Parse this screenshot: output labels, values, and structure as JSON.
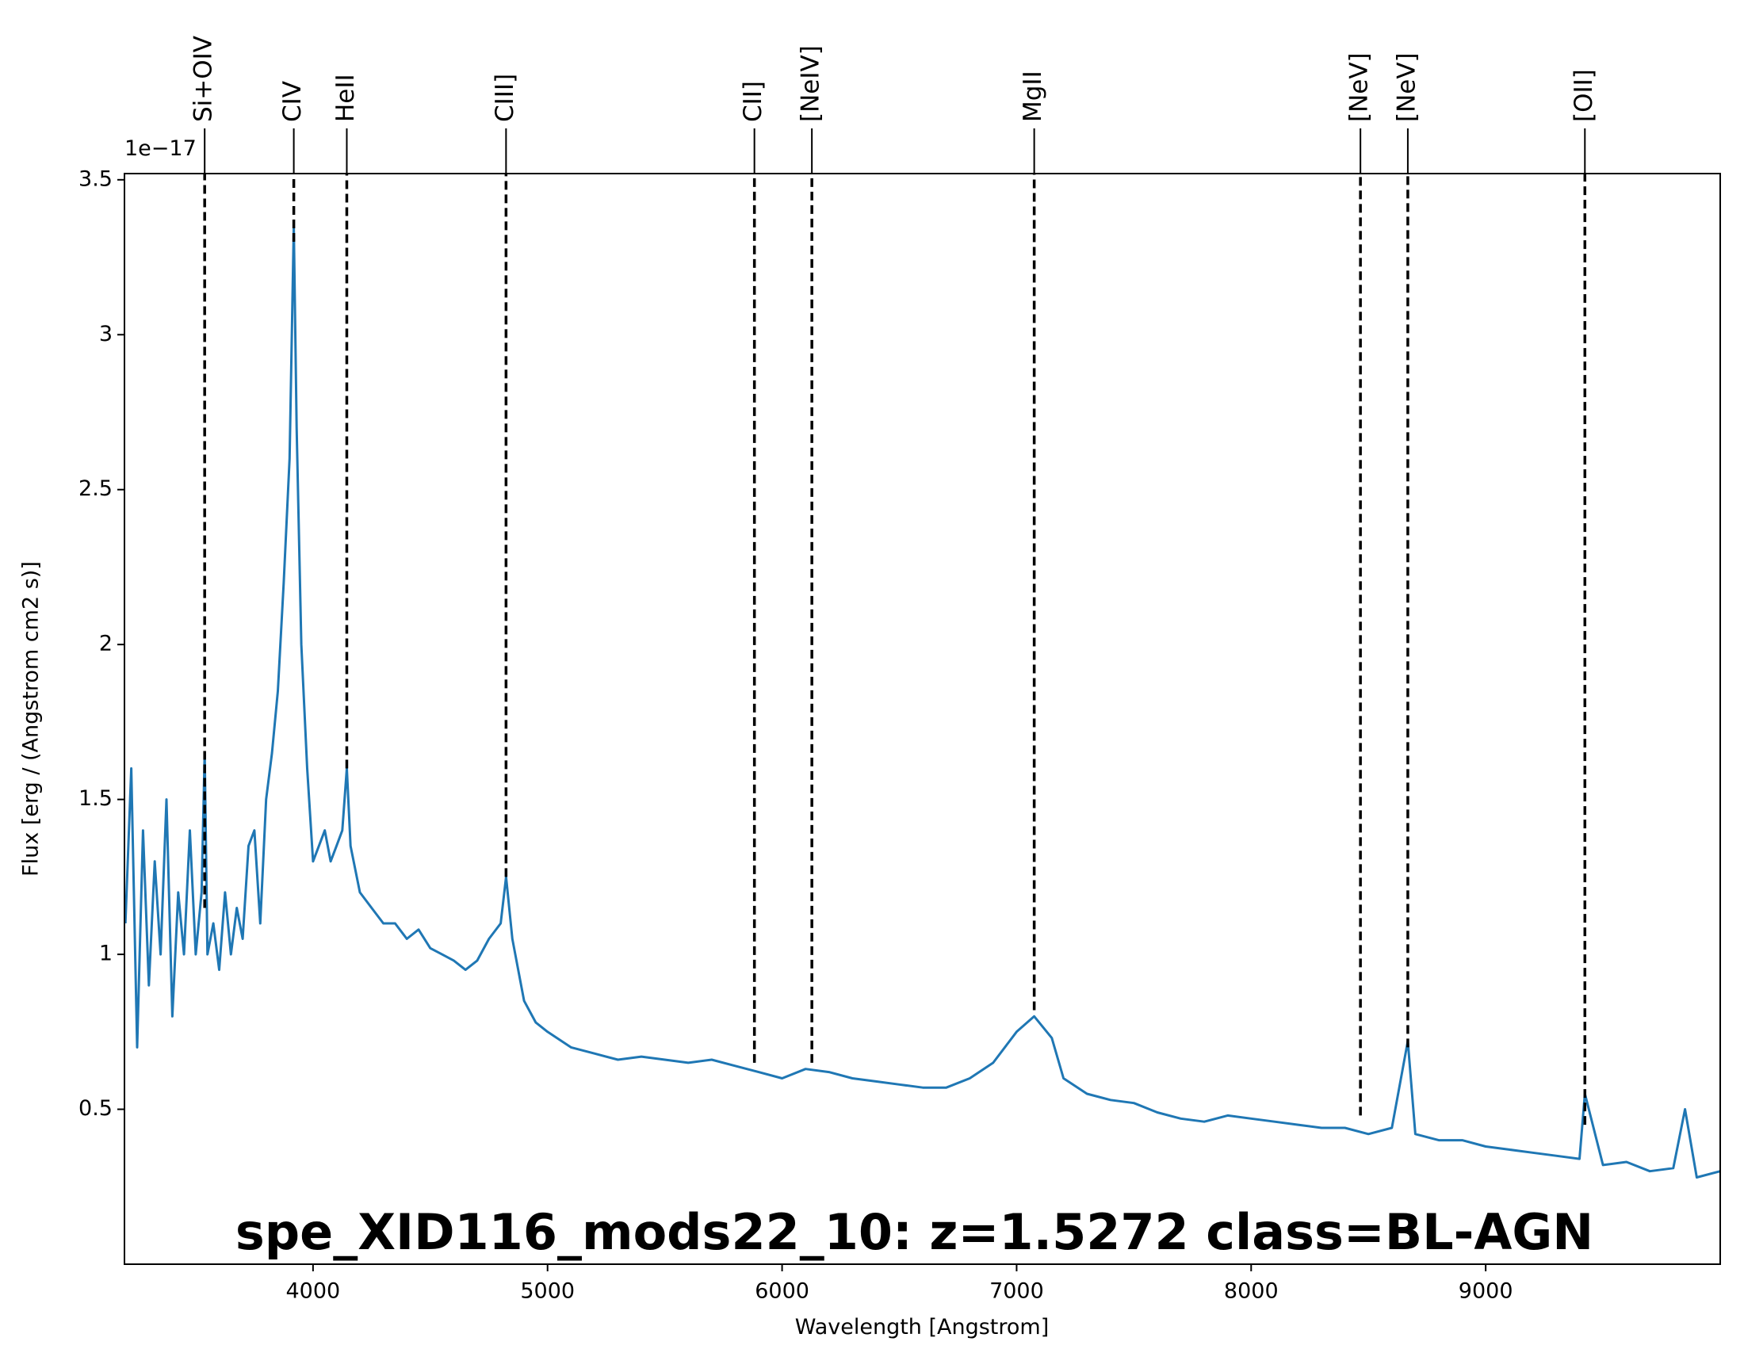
{
  "chart_data": {
    "type": "line",
    "title": "spe_XID116_mods22_10: z=1.5272 class=BL-AGN",
    "x_label": "Wavelength [Angstrom]",
    "y_label": "Flux [erg / (Angstrom cm2 s)]",
    "y_offset_label": "1e−17",
    "color": "#1f77b4",
    "title_color": "#0000ff",
    "xlim": [
      3196,
      10000
    ],
    "ylim": [
      0.0,
      3.52
    ],
    "xticks": [
      4000,
      5000,
      6000,
      7000,
      8000,
      9000
    ],
    "yticks": [
      0.5,
      1.0,
      1.5,
      2.0,
      2.5,
      3.0,
      3.5
    ],
    "x": [
      3200,
      3225,
      3250,
      3275,
      3300,
      3325,
      3350,
      3375,
      3400,
      3425,
      3450,
      3475,
      3500,
      3525,
      3538,
      3550,
      3575,
      3600,
      3625,
      3650,
      3675,
      3700,
      3725,
      3750,
      3775,
      3800,
      3825,
      3850,
      3875,
      3900,
      3918,
      3930,
      3950,
      3975,
      4000,
      4025,
      4050,
      4075,
      4100,
      4125,
      4144,
      4160,
      4200,
      4250,
      4300,
      4350,
      4400,
      4450,
      4500,
      4550,
      4600,
      4650,
      4700,
      4750,
      4800,
      4823,
      4850,
      4900,
      4950,
      5000,
      5100,
      5200,
      5300,
      5400,
      5500,
      5600,
      5700,
      5800,
      5900,
      6000,
      6100,
      6200,
      6300,
      6400,
      6500,
      6600,
      6700,
      6800,
      6900,
      7000,
      7075,
      7150,
      7200,
      7300,
      7400,
      7500,
      7600,
      7700,
      7800,
      7900,
      8000,
      8100,
      8200,
      8300,
      8400,
      8500,
      8600,
      8668,
      8700,
      8800,
      8900,
      9000,
      9100,
      9200,
      9300,
      9400,
      9423,
      9500,
      9600,
      9700,
      9800,
      9850,
      9900,
      10000
    ],
    "values": [
      1.1,
      1.6,
      0.7,
      1.4,
      0.9,
      1.3,
      1.0,
      1.5,
      0.8,
      1.2,
      1.0,
      1.4,
      1.0,
      1.2,
      1.65,
      1.0,
      1.1,
      0.95,
      1.2,
      1.0,
      1.15,
      1.05,
      1.35,
      1.4,
      1.1,
      1.5,
      1.65,
      1.85,
      2.2,
      2.6,
      3.35,
      2.7,
      2.0,
      1.6,
      1.3,
      1.35,
      1.4,
      1.3,
      1.35,
      1.4,
      1.6,
      1.35,
      1.2,
      1.15,
      1.1,
      1.1,
      1.05,
      1.08,
      1.02,
      1.0,
      0.98,
      0.95,
      0.98,
      1.05,
      1.1,
      1.25,
      1.05,
      0.85,
      0.78,
      0.75,
      0.7,
      0.68,
      0.66,
      0.67,
      0.66,
      0.65,
      0.66,
      0.64,
      0.62,
      0.6,
      0.63,
      0.62,
      0.6,
      0.59,
      0.58,
      0.57,
      0.57,
      0.6,
      0.65,
      0.75,
      0.8,
      0.73,
      0.6,
      0.55,
      0.53,
      0.52,
      0.49,
      0.47,
      0.46,
      0.48,
      0.47,
      0.46,
      0.45,
      0.44,
      0.44,
      0.42,
      0.44,
      0.72,
      0.42,
      0.4,
      0.4,
      0.38,
      0.37,
      0.36,
      0.35,
      0.34,
      0.55,
      0.32,
      0.33,
      0.3,
      0.31,
      0.5,
      0.28,
      0.3
    ],
    "lines": [
      {
        "label": "Si+OIV",
        "x": 3538,
        "y": 1.15
      },
      {
        "label": "CIV",
        "x": 3918,
        "y": 3.3
      },
      {
        "label": "HeII",
        "x": 4144,
        "y": 1.6
      },
      {
        "label": "CIII]",
        "x": 4823,
        "y": 1.25
      },
      {
        "label": "CII]",
        "x": 5882,
        "y": 0.65
      },
      {
        "label": "[NeIV]",
        "x": 6127,
        "y": 0.65
      },
      {
        "label": "MgII",
        "x": 7075,
        "y": 0.82
      },
      {
        "label": "[NeV]",
        "x": 8466,
        "y": 0.48
      },
      {
        "label": "[NeV]",
        "x": 8668,
        "y": 0.7
      },
      {
        "label": "[OII]",
        "x": 9423,
        "y": 0.45
      }
    ]
  }
}
